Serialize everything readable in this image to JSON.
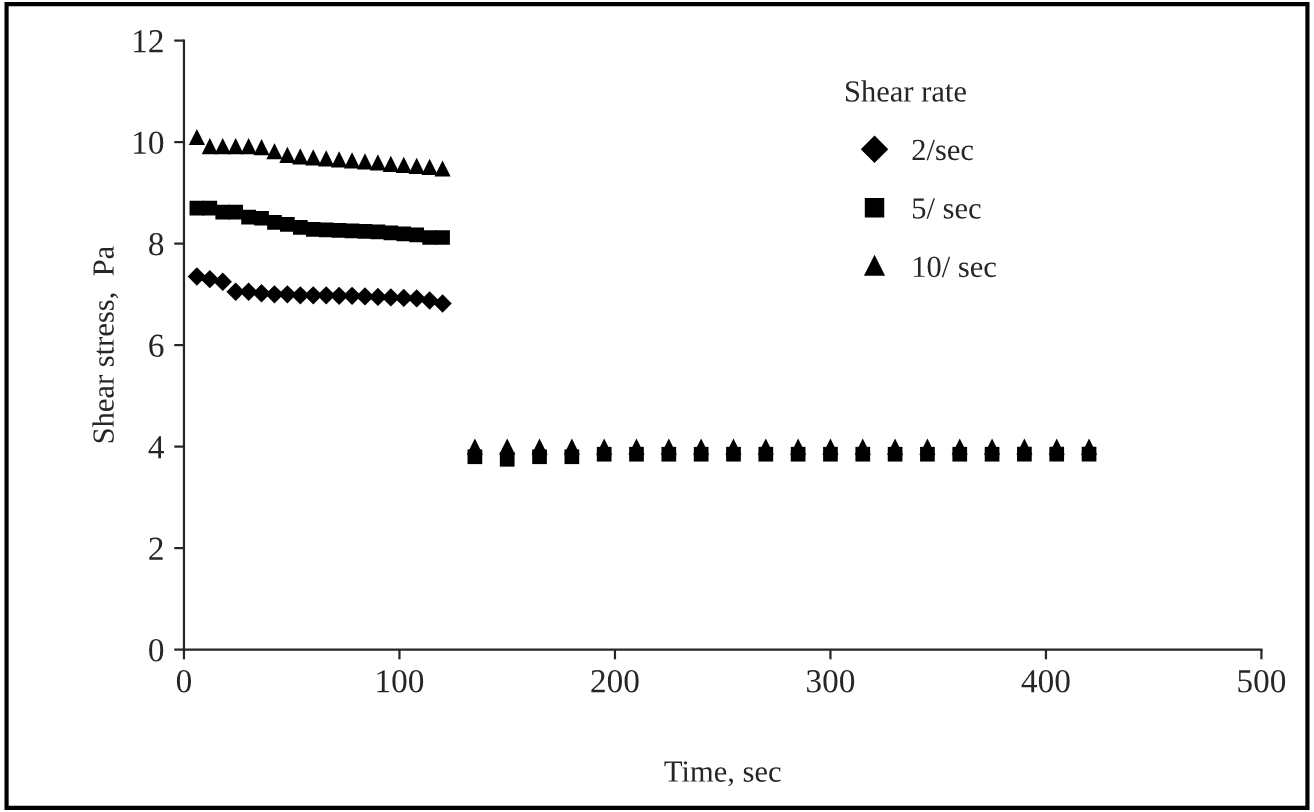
{
  "chart_data": {
    "type": "scatter",
    "xlabel": "Time, sec",
    "ylabel": "Shear stress,  Pa",
    "legend_title": "Shear rate",
    "x": [
      6,
      12,
      18,
      24,
      30,
      36,
      42,
      48,
      54,
      60,
      66,
      72,
      78,
      84,
      90,
      96,
      102,
      108,
      114,
      120,
      135,
      150,
      165,
      180,
      195,
      210,
      225,
      240,
      255,
      270,
      285,
      300,
      315,
      330,
      345,
      360,
      375,
      390,
      405,
      420
    ],
    "series": [
      {
        "name": "2/sec",
        "color": "#000000",
        "marker": "diamond",
        "values": [
          7.35,
          7.3,
          7.25,
          7.05,
          7.05,
          7.02,
          7.0,
          7.0,
          6.98,
          6.98,
          6.98,
          6.97,
          6.97,
          6.96,
          6.95,
          6.94,
          6.93,
          6.92,
          6.88,
          6.82,
          null,
          null,
          null,
          null,
          null,
          null,
          null,
          null,
          null,
          null,
          null,
          null,
          null,
          null,
          null,
          null,
          null,
          null,
          null,
          null
        ]
      },
      {
        "name": "5/ sec",
        "color": "#000000",
        "marker": "square",
        "values": [
          8.7,
          8.7,
          8.62,
          8.62,
          8.52,
          8.5,
          8.42,
          8.38,
          8.32,
          8.28,
          8.27,
          8.26,
          8.25,
          8.24,
          8.23,
          8.21,
          8.19,
          8.17,
          8.12,
          8.12,
          3.8,
          3.75,
          3.8,
          3.8,
          3.85,
          3.85,
          3.85,
          3.85,
          3.85,
          3.85,
          3.85,
          3.85,
          3.85,
          3.85,
          3.85,
          3.85,
          3.85,
          3.85,
          3.85,
          3.85
        ]
      },
      {
        "name": "10/ sec",
        "color": "#000000",
        "marker": "triangle",
        "values": [
          10.1,
          9.92,
          9.92,
          9.92,
          9.92,
          9.9,
          9.82,
          9.75,
          9.72,
          9.7,
          9.68,
          9.66,
          9.64,
          9.62,
          9.6,
          9.57,
          9.55,
          9.53,
          9.51,
          9.48,
          4.0,
          4.0,
          4.0,
          4.0,
          4.0,
          4.0,
          4.0,
          4.0,
          4.0,
          4.0,
          4.0,
          4.0,
          4.0,
          4.0,
          4.0,
          4.0,
          4.0,
          4.0,
          4.0,
          4.0
        ]
      }
    ],
    "xlim": [
      0,
      500
    ],
    "xticks": [
      0,
      100,
      200,
      300,
      400,
      500
    ],
    "ylim": [
      0,
      12
    ],
    "yticks": [
      0,
      2,
      4,
      6,
      8,
      10,
      12
    ],
    "grid": false,
    "legend": "top right"
  }
}
